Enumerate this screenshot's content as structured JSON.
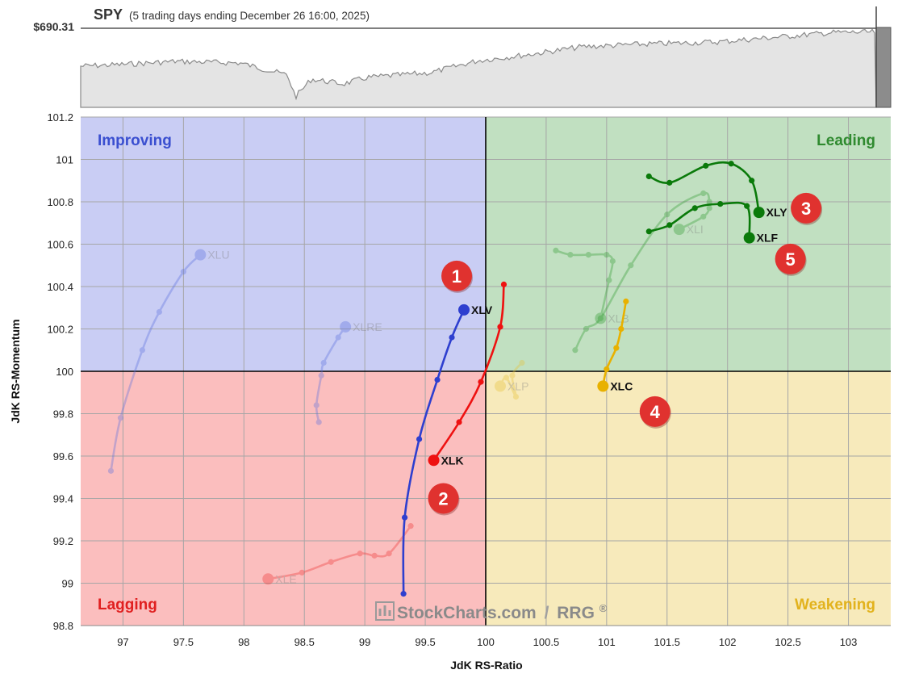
{
  "header": {
    "symbol": "SPY",
    "period": "(5 trading days ending December 26 16:00, 2025)",
    "price": "$690.31"
  },
  "quadrants": {
    "improving": "Improving",
    "leading": "Leading",
    "lagging": "Lagging",
    "weakening": "Weakening"
  },
  "watermark": {
    "brand": "StockCharts.com",
    "sep": "/",
    "product": "RRG",
    "reg": "®"
  },
  "colors": {
    "improving_bg": "#c9cdf4",
    "leading_bg": "#c1e0c1",
    "lagging_bg": "#fbbebe",
    "weakening_bg": "#f7eabb",
    "improving_text": "#3a4fd0",
    "leading_text": "#2f8a2f",
    "lagging_text": "#e02020",
    "weakening_text": "#e2b21c"
  },
  "chart_data": {
    "type": "scatter",
    "xlabel": "JdK RS-Ratio",
    "ylabel": "JdK RS-Momentum",
    "xlim": [
      96.65,
      103.35
    ],
    "ylim": [
      98.8,
      101.2
    ],
    "x_ticks": [
      "97",
      "97.5",
      "98",
      "98.5",
      "99",
      "99.5",
      "100",
      "100.5",
      "101",
      "101.5",
      "102",
      "102.5",
      "103"
    ],
    "y_ticks": [
      "98.8",
      "99",
      "99.2",
      "99.4",
      "99.6",
      "99.8",
      "100",
      "100.2",
      "100.4",
      "100.6",
      "100.8",
      "101",
      "101.2"
    ],
    "series": [
      {
        "name": "XLU",
        "color": "#5a6fe0",
        "faded": true,
        "points": [
          [
            96.9,
            99.53
          ],
          [
            96.98,
            99.78
          ],
          [
            97.16,
            100.1
          ],
          [
            97.3,
            100.28
          ],
          [
            97.5,
            100.47
          ],
          [
            97.64,
            100.55
          ]
        ]
      },
      {
        "name": "XLRE",
        "color": "#5a6fe0",
        "faded": true,
        "points": [
          [
            98.62,
            99.76
          ],
          [
            98.6,
            99.84
          ],
          [
            98.64,
            99.98
          ],
          [
            98.66,
            100.04
          ],
          [
            98.78,
            100.16
          ],
          [
            98.84,
            100.21
          ]
        ]
      },
      {
        "name": "XLE",
        "color": "#ee3030",
        "faded": true,
        "points": [
          [
            99.38,
            99.27
          ],
          [
            99.2,
            99.14
          ],
          [
            99.08,
            99.13
          ],
          [
            98.96,
            99.14
          ],
          [
            98.72,
            99.1
          ],
          [
            98.48,
            99.05
          ],
          [
            98.2,
            99.02
          ]
        ]
      },
      {
        "name": "XLP",
        "color": "#e6c234",
        "faded": true,
        "points": [
          [
            100.3,
            100.04
          ],
          [
            100.22,
            99.98
          ],
          [
            100.25,
            99.88
          ],
          [
            100.17,
            99.97
          ],
          [
            100.12,
            99.93
          ]
        ]
      },
      {
        "name": "XLI",
        "color": "#2e9a2e",
        "faded": true,
        "points": [
          [
            100.74,
            100.1
          ],
          [
            100.83,
            100.2
          ],
          [
            100.95,
            100.25
          ],
          [
            101.2,
            100.5
          ],
          [
            101.5,
            100.74
          ],
          [
            101.8,
            100.84
          ],
          [
            101.85,
            100.8
          ],
          [
            101.85,
            100.77
          ],
          [
            101.8,
            100.73
          ],
          [
            101.6,
            100.67
          ]
        ]
      },
      {
        "name": "XLB",
        "color": "#2e9a2e",
        "faded": true,
        "points": [
          [
            100.58,
            100.57
          ],
          [
            100.7,
            100.55
          ],
          [
            100.85,
            100.55
          ],
          [
            101.0,
            100.55
          ],
          [
            101.05,
            100.52
          ],
          [
            101.02,
            100.43
          ],
          [
            100.95,
            100.25
          ]
        ]
      },
      {
        "name": "XLV",
        "color": "#2e3fcf",
        "points": [
          [
            99.32,
            98.95
          ],
          [
            99.33,
            99.31
          ],
          [
            99.45,
            99.68
          ],
          [
            99.6,
            99.96
          ],
          [
            99.72,
            100.16
          ],
          [
            99.82,
            100.29
          ]
        ]
      },
      {
        "name": "XLK",
        "color": "#ee1111",
        "points": [
          [
            100.15,
            100.41
          ],
          [
            100.12,
            100.21
          ],
          [
            99.96,
            99.95
          ],
          [
            99.78,
            99.76
          ],
          [
            99.57,
            99.58
          ]
        ]
      },
      {
        "name": "XLY",
        "color": "#0a7a0a",
        "points": [
          [
            101.35,
            100.92
          ],
          [
            101.52,
            100.89
          ],
          [
            101.82,
            100.97
          ],
          [
            102.03,
            100.98
          ],
          [
            102.2,
            100.9
          ],
          [
            102.26,
            100.75
          ]
        ]
      },
      {
        "name": "XLF",
        "color": "#0a7a0a",
        "points": [
          [
            101.35,
            100.66
          ],
          [
            101.52,
            100.69
          ],
          [
            101.73,
            100.77
          ],
          [
            101.94,
            100.79
          ],
          [
            102.16,
            100.78
          ],
          [
            102.18,
            100.63
          ]
        ]
      },
      {
        "name": "XLC",
        "color": "#e8b100",
        "points": [
          [
            101.16,
            100.33
          ],
          [
            101.12,
            100.2
          ],
          [
            101.08,
            100.11
          ],
          [
            101.0,
            100.01
          ],
          [
            100.97,
            99.93
          ]
        ]
      }
    ],
    "annotations": [
      {
        "text": "1",
        "x": 99.76,
        "y": 100.45
      },
      {
        "text": "2",
        "x": 99.65,
        "y": 99.4
      },
      {
        "text": "3",
        "x": 102.65,
        "y": 100.77
      },
      {
        "text": "4",
        "x": 101.4,
        "y": 99.81
      },
      {
        "text": "5",
        "x": 102.52,
        "y": 100.53
      }
    ]
  }
}
